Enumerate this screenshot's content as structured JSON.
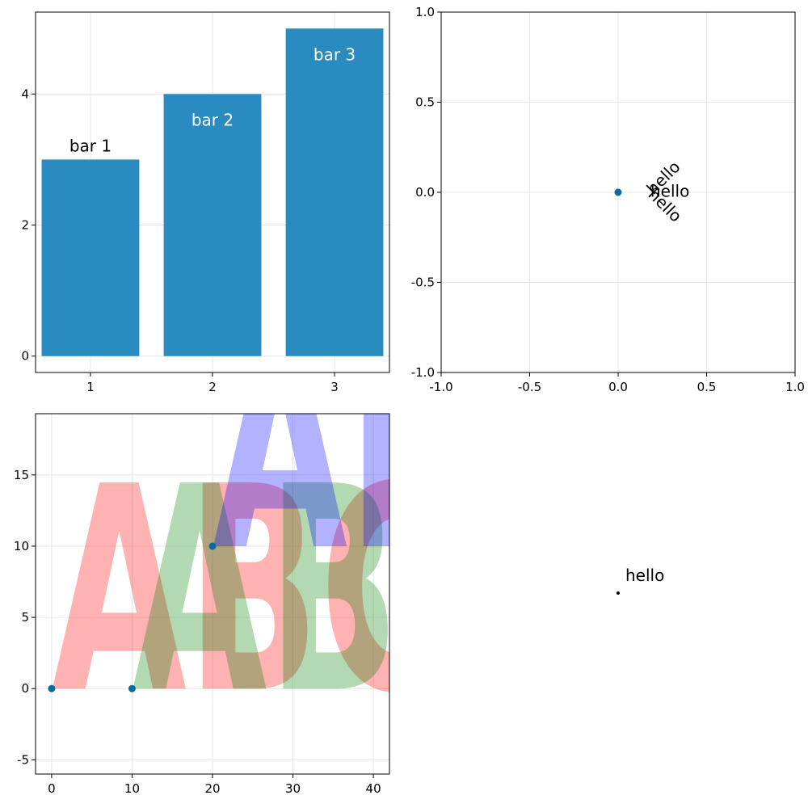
{
  "chart_data": [
    {
      "type": "bar",
      "categories": [
        "1",
        "2",
        "3"
      ],
      "values": [
        3,
        4,
        5
      ],
      "bar_labels": [
        "bar 1",
        "bar 2",
        "bar 3"
      ],
      "bar_label_colors": [
        "#000000",
        "#ffffff",
        "#ffffff"
      ],
      "bar_label_inside": [
        false,
        true,
        true
      ],
      "xlim": [
        0.55,
        3.45
      ],
      "ylim": [
        -0.25,
        5.25
      ],
      "xticks": [
        1,
        2,
        3
      ],
      "yticks": [
        0,
        2,
        4
      ],
      "grid": true,
      "color": "#2a8bc1"
    },
    {
      "type": "scatter",
      "points": [
        {
          "x": 0,
          "y": 0
        }
      ],
      "xlim": [
        -1,
        1
      ],
      "ylim": [
        -1,
        1
      ],
      "xticks": [
        -1.0,
        -0.5,
        0.0,
        0.5,
        1.0
      ],
      "yticks": [
        -1.0,
        -0.5,
        0.0,
        0.5,
        1.0
      ],
      "tick_labels": [
        "-1.0",
        "-0.5",
        "0.0",
        "0.5",
        "1.0"
      ],
      "grid": true,
      "marker_color": "#0a6aa1",
      "text_annotations": [
        {
          "text": "hello",
          "rotation": 0
        },
        {
          "text": "hello",
          "rotation": -45
        },
        {
          "text": "hello",
          "rotation": 45
        }
      ]
    },
    {
      "type": "scatter",
      "points": [
        {
          "x": 0,
          "y": 0
        },
        {
          "x": 10,
          "y": 0
        },
        {
          "x": 20,
          "y": 10
        }
      ],
      "xlim": [
        -2,
        42
      ],
      "ylim": [
        -6,
        19.3
      ],
      "xticks": [
        0,
        10,
        20,
        30,
        40
      ],
      "yticks": [
        -5,
        0,
        5,
        10,
        15
      ],
      "grid": true,
      "marker_color": "#0a6aa1",
      "text_annotations": [
        {
          "text": "ABC",
          "x": 0,
          "y": 0,
          "color": "#ff0000",
          "opacity": 0.3
        },
        {
          "text": "ABC",
          "x": 10,
          "y": 0,
          "color": "#008000",
          "opacity": 0.3
        },
        {
          "text": "ABC",
          "x": 20,
          "y": 10,
          "color": "#0000ff",
          "opacity": 0.3
        }
      ]
    },
    {
      "type": "scatter",
      "points": [
        {
          "x": 0,
          "y": 0
        }
      ],
      "axes_hidden": true,
      "marker_color": "#000000",
      "text_annotations": [
        {
          "text": "hello",
          "rotation": 0
        }
      ]
    }
  ]
}
